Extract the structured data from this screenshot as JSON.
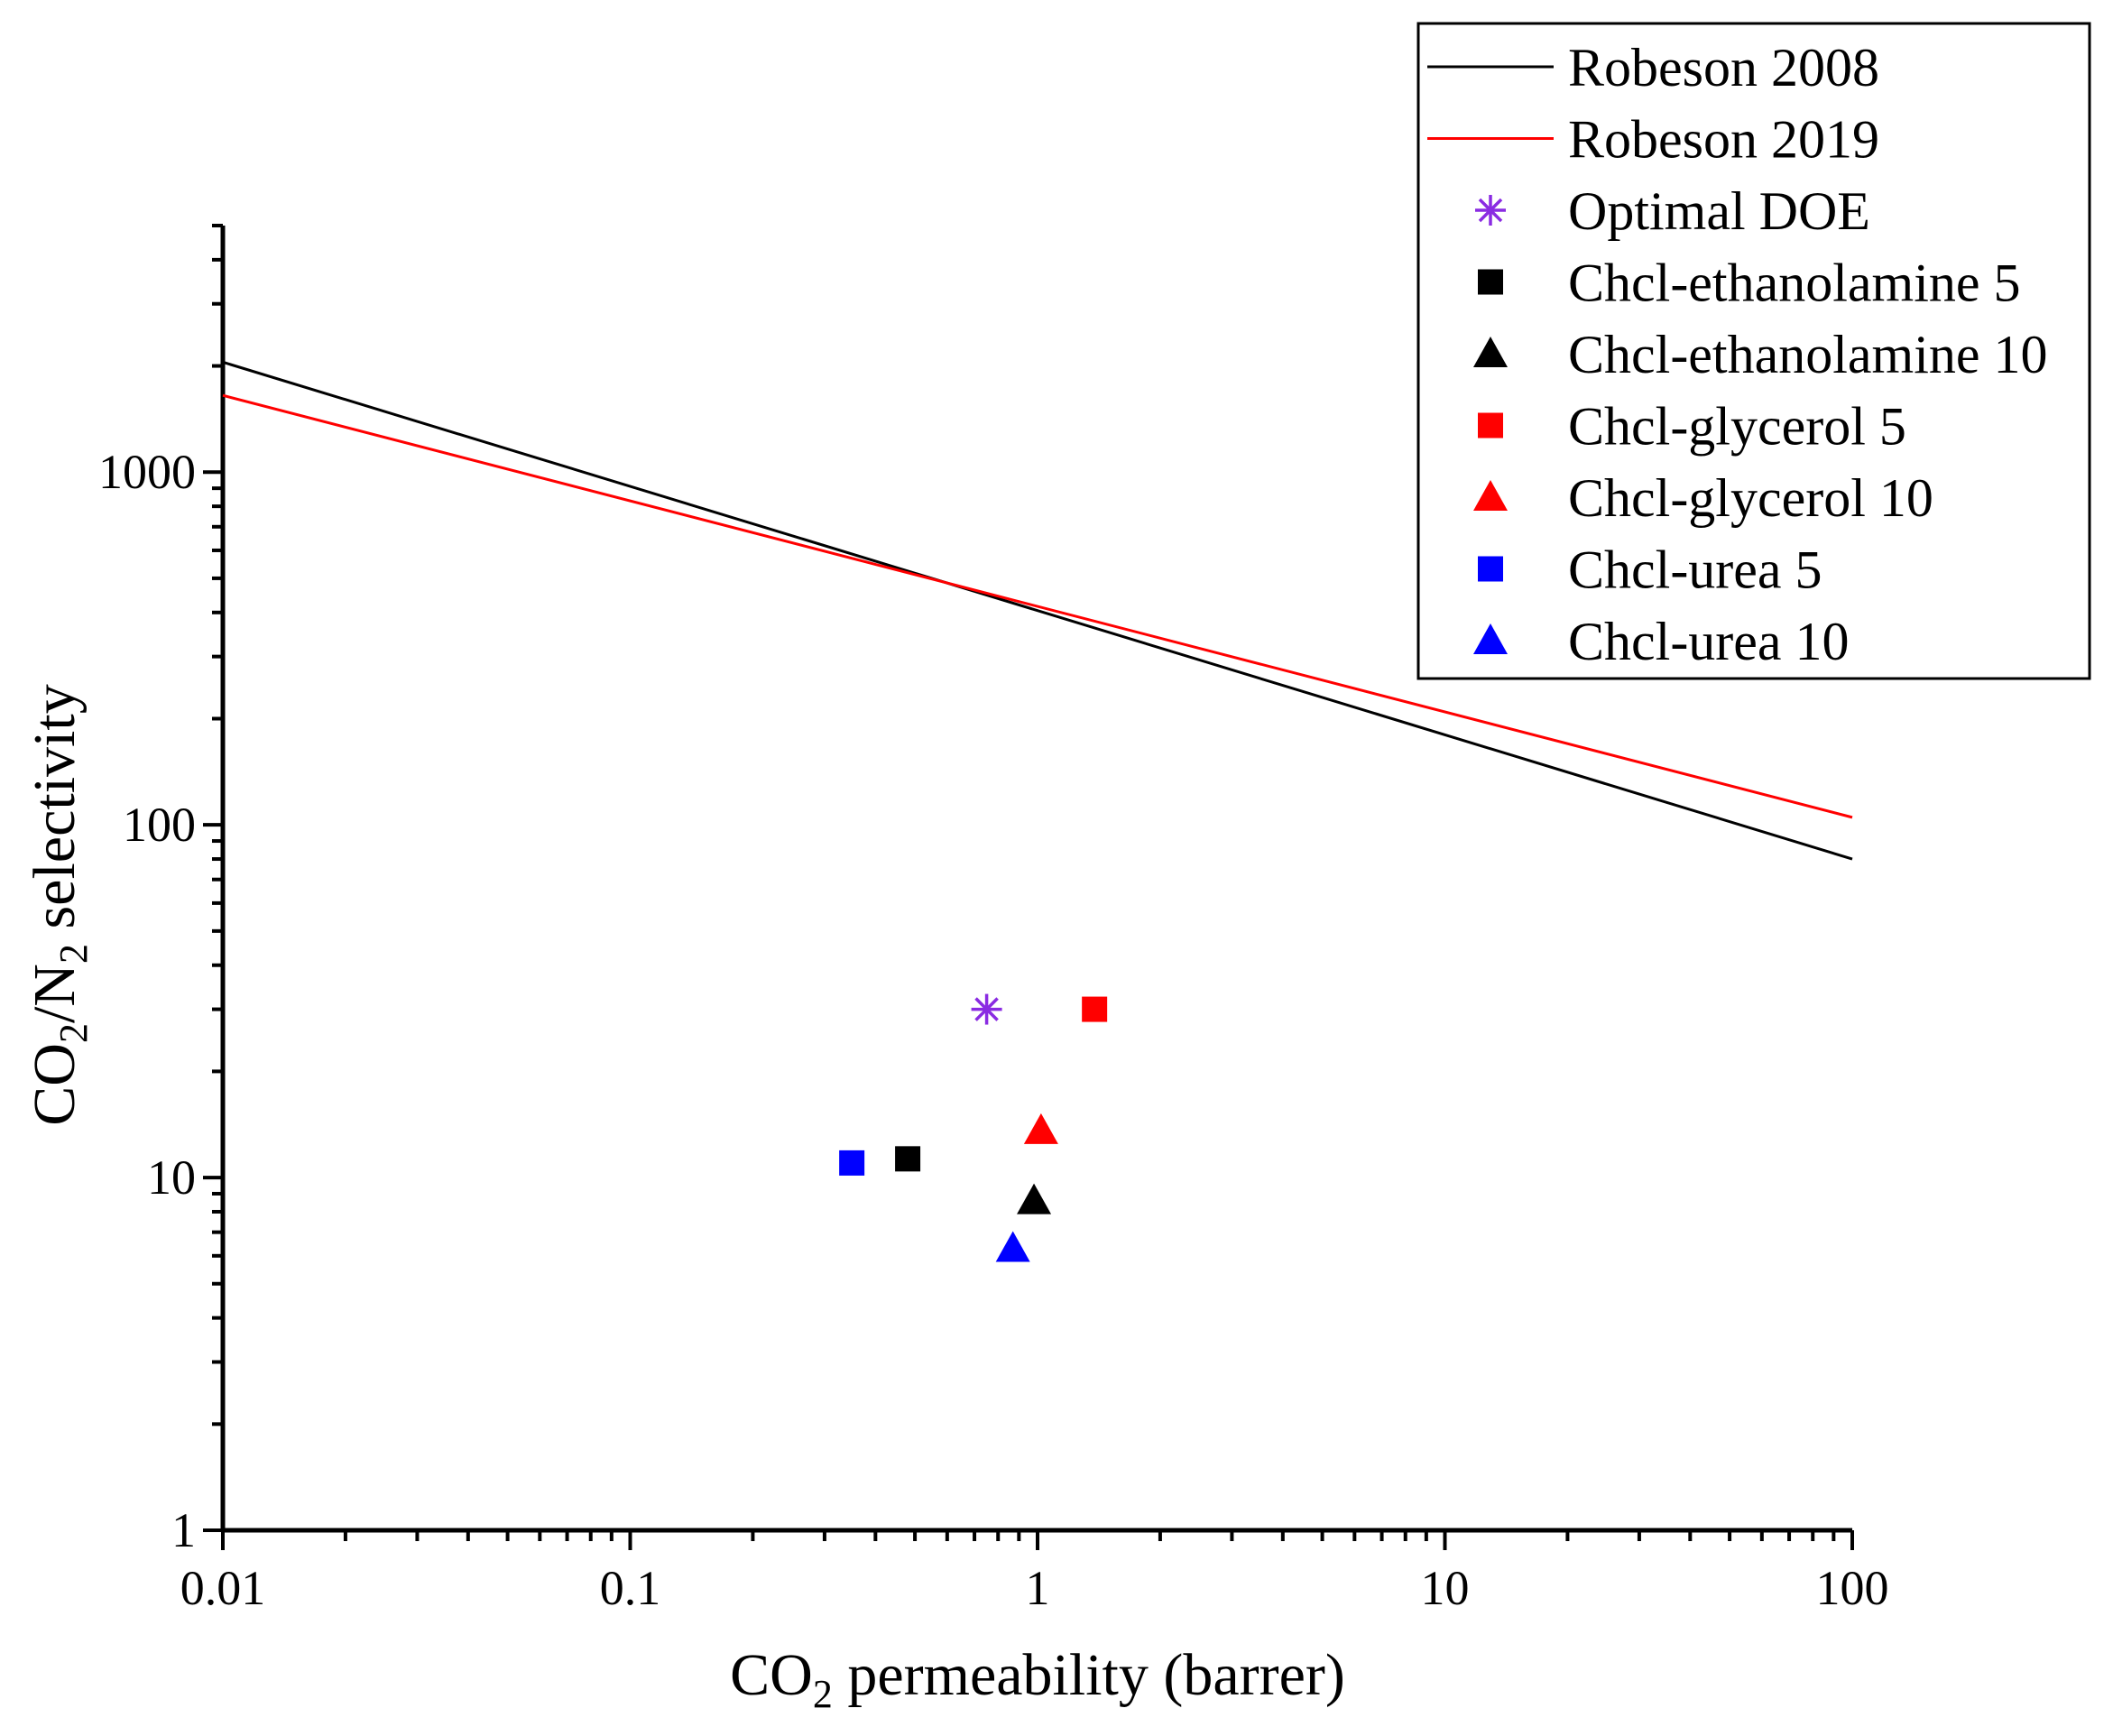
{
  "chart_data": {
    "type": "scatter",
    "title": "",
    "xlabel": {
      "main": "CO",
      "sub": "2",
      "rest": " permeability (barrer)"
    },
    "ylabel": {
      "p1": "CO",
      "s1": "2",
      "p2": "/N",
      "s2": "2",
      "p3": " selectivity"
    },
    "xscale": "log",
    "yscale": "log",
    "xlim": [
      0.01,
      100
    ],
    "ylim": [
      1,
      5000
    ],
    "xticks": [
      {
        "value": 0.01,
        "label": "0.01"
      },
      {
        "value": 0.1,
        "label": "0.1"
      },
      {
        "value": 1,
        "label": "1"
      },
      {
        "value": 10,
        "label": "10"
      },
      {
        "value": 100,
        "label": "100"
      }
    ],
    "yticks": [
      {
        "value": 1,
        "label": "1"
      },
      {
        "value": 10,
        "label": "10"
      },
      {
        "value": 100,
        "label": "100"
      },
      {
        "value": 1000,
        "label": "1000"
      }
    ],
    "grid": false,
    "legend_position": "top-right",
    "lines": [
      {
        "name": "Robeson 2008",
        "color": "#000000",
        "x": [
          0.01,
          100
        ],
        "y": [
          2050,
          80
        ]
      },
      {
        "name": "Robeson 2019",
        "color": "#ff0000",
        "x": [
          0.01,
          100
        ],
        "y": [
          1650,
          105
        ]
      }
    ],
    "series": [
      {
        "name": "Optimal DOE",
        "marker": "asterisk",
        "color": "#8a2be2",
        "x": [
          0.75
        ],
        "y": [
          30
        ]
      },
      {
        "name": "Chcl-ethanolamine 5",
        "marker": "square",
        "color": "#000000",
        "x": [
          0.48
        ],
        "y": [
          11.3
        ]
      },
      {
        "name": "Chcl-ethanolamine 10",
        "marker": "triangle",
        "color": "#000000",
        "x": [
          0.98
        ],
        "y": [
          8.6
        ]
      },
      {
        "name": "Chcl-glycerol 5",
        "marker": "square",
        "color": "#ff0000",
        "x": [
          1.38
        ],
        "y": [
          30
        ]
      },
      {
        "name": "Chcl-glycerol 10",
        "marker": "triangle",
        "color": "#ff0000",
        "x": [
          1.02
        ],
        "y": [
          13.6
        ]
      },
      {
        "name": "Chcl-urea 5",
        "marker": "square",
        "color": "#0000ff",
        "x": [
          0.35
        ],
        "y": [
          11
        ]
      },
      {
        "name": "Chcl-urea 10",
        "marker": "triangle",
        "color": "#0000ff",
        "x": [
          0.87
        ],
        "y": [
          6.3
        ]
      }
    ]
  }
}
